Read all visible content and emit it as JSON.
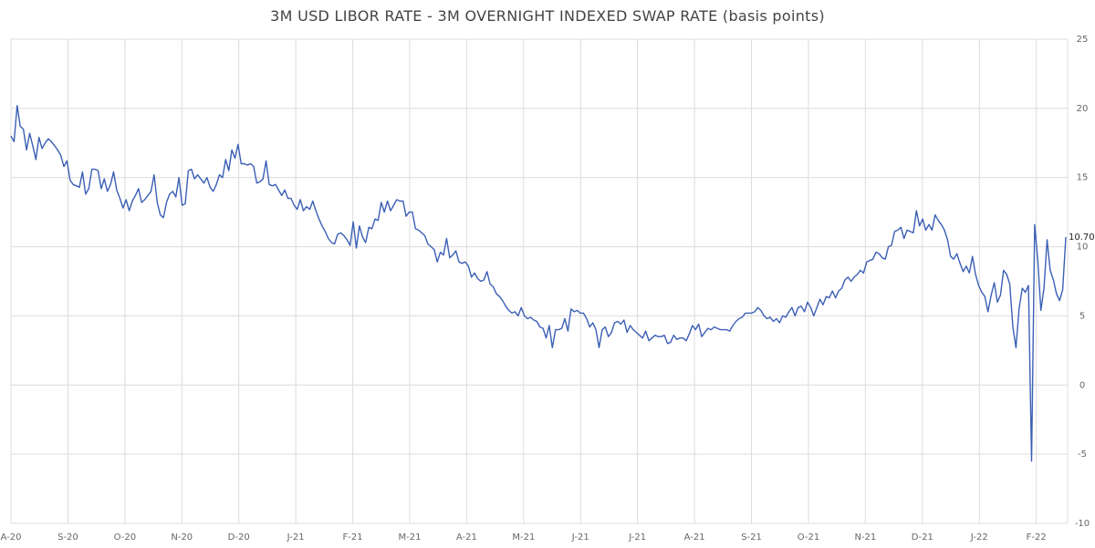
{
  "chart_data": {
    "type": "line",
    "title": "3M USD LIBOR RATE - 3M OVERNIGHT INDEXED SWAP RATE (basis points)",
    "xlabel": "",
    "ylabel": "",
    "ylim": [
      -10,
      25
    ],
    "y_ticks": [
      -10,
      -5,
      0,
      5,
      10,
      15,
      20,
      25
    ],
    "x_ticks": [
      "A-20",
      "S-20",
      "O-20",
      "N-20",
      "D-20",
      "J-21",
      "F-21",
      "M-21",
      "A-21",
      "M-21",
      "J-21",
      "J-21",
      "A-21",
      "S-21",
      "O-21",
      "N-21",
      "D-21",
      "J-22",
      "F-22"
    ],
    "grid": true,
    "y_axis_position": "right",
    "last_value_label": "10.70",
    "line_color": "#3b5fb5",
    "series": [
      {
        "values": [
          18.0,
          17.6,
          20.2,
          18.7,
          18.5,
          17.0,
          18.2,
          17.3,
          16.3,
          17.9,
          17.1,
          17.5,
          17.8,
          17.6,
          17.3,
          17.0,
          16.6,
          15.8,
          16.2,
          14.8,
          14.5,
          14.4,
          14.3,
          15.4,
          13.8,
          14.2,
          15.6,
          15.6,
          15.5,
          14.2,
          14.9,
          14.0,
          14.5,
          15.4,
          14.1,
          13.5,
          12.8,
          13.4,
          12.6,
          13.3,
          13.7,
          14.2,
          13.2,
          13.4,
          13.7,
          14.0,
          15.2,
          13.2,
          12.3,
          12.1,
          13.2,
          13.8,
          14.0,
          13.6,
          15.0,
          13.0,
          13.1,
          15.5,
          15.6,
          14.9,
          15.2,
          14.9,
          14.6,
          15.0,
          14.3,
          14.0,
          14.5,
          15.2,
          15.0,
          16.3,
          15.5,
          17.0,
          16.4,
          17.4,
          16.0,
          16.0,
          15.9,
          16.0,
          15.8,
          14.6,
          14.7,
          14.9,
          16.2,
          14.5,
          14.4,
          14.5,
          14.1,
          13.7,
          14.1,
          13.5,
          13.5,
          13.0,
          12.7,
          13.4,
          12.6,
          12.9,
          12.7,
          13.3,
          12.6,
          12.0,
          11.5,
          11.1,
          10.6,
          10.3,
          10.2,
          10.9,
          11.0,
          10.8,
          10.5,
          10.1,
          11.8,
          9.9,
          11.5,
          10.7,
          10.3,
          11.4,
          11.3,
          12.0,
          11.9,
          13.2,
          12.5,
          13.3,
          12.6,
          13.0,
          13.4,
          13.3,
          13.3,
          12.2,
          12.5,
          12.5,
          11.3,
          11.2,
          11.0,
          10.8,
          10.2,
          10.0,
          9.8,
          8.9,
          9.6,
          9.4,
          10.6,
          9.2,
          9.4,
          9.7,
          8.9,
          8.8,
          8.9,
          8.6,
          7.8,
          8.1,
          7.7,
          7.5,
          7.6,
          8.2,
          7.3,
          7.1,
          6.6,
          6.4,
          6.1,
          5.7,
          5.4,
          5.2,
          5.3,
          5.0,
          5.6,
          5.0,
          4.8,
          4.9,
          4.7,
          4.6,
          4.2,
          4.1,
          3.4,
          4.3,
          2.7,
          4.0,
          4.0,
          4.1,
          4.8,
          3.9,
          5.5,
          5.3,
          5.4,
          5.2,
          5.2,
          4.8,
          4.2,
          4.5,
          4.0,
          2.7,
          4.0,
          4.2,
          3.5,
          3.8,
          4.5,
          4.6,
          4.4,
          4.7,
          3.8,
          4.3,
          4.0,
          3.8,
          3.6,
          3.4,
          3.9,
          3.2,
          3.4,
          3.6,
          3.5,
          3.5,
          3.6,
          3.0,
          3.1,
          3.6,
          3.3,
          3.4,
          3.4,
          3.2,
          3.7,
          4.3,
          4.0,
          4.4,
          3.5,
          3.8,
          4.1,
          4.0,
          4.2,
          4.1,
          4.0,
          4.0,
          4.0,
          3.9,
          4.3,
          4.6,
          4.8,
          4.9,
          5.2,
          5.2,
          5.2,
          5.3,
          5.6,
          5.4,
          5.0,
          4.8,
          4.9,
          4.6,
          4.8,
          4.5,
          5.0,
          4.9,
          5.3,
          5.6,
          5.0,
          5.6,
          5.7,
          5.3,
          6.0,
          5.6,
          5.0,
          5.6,
          6.2,
          5.8,
          6.4,
          6.3,
          6.8,
          6.3,
          6.8,
          7.0,
          7.6,
          7.8,
          7.5,
          7.8,
          8.0,
          8.3,
          8.1,
          8.9,
          9.0,
          9.1,
          9.6,
          9.5,
          9.2,
          9.1,
          10.0,
          10.1,
          11.1,
          11.2,
          11.4,
          10.6,
          11.2,
          11.1,
          11.0,
          12.6,
          11.5,
          12.0,
          11.2,
          11.6,
          11.2,
          12.3,
          11.9,
          11.6,
          11.2,
          10.5,
          9.3,
          9.1,
          9.5,
          8.8,
          8.2,
          8.6,
          8.1,
          9.3,
          8.0,
          7.2,
          6.7,
          6.4,
          5.3,
          6.5,
          7.4,
          6.0,
          6.5,
          8.3,
          8.0,
          7.3,
          4.2,
          2.7,
          5.5,
          7.0,
          6.7,
          7.2,
          -5.5,
          11.6,
          9.0,
          5.4,
          7.0,
          10.5,
          8.3,
          7.6,
          6.6,
          6.1,
          6.9,
          10.7
        ]
      }
    ]
  }
}
